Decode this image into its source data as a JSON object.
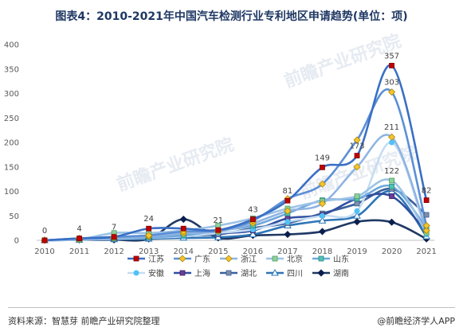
{
  "chart_data": {
    "type": "line",
    "title": "图表4：2010-2021年中国汽车检测行业专利地区申请趋势(单位：项)",
    "categories": [
      "2010",
      "2011",
      "2012",
      "2013",
      "2014",
      "2015",
      "2016",
      "2017",
      "2018",
      "2019",
      "2020",
      "2021"
    ],
    "ylim": [
      0,
      400
    ],
    "yticks": [
      0,
      50,
      100,
      150,
      200,
      250,
      300,
      350,
      400
    ],
    "grid": false,
    "legend_position": "bottom",
    "series": [
      {
        "name": "江苏",
        "color": "#3a6fc4",
        "marker": "square-red",
        "values": [
          0,
          4,
          7,
          24,
          24,
          21,
          43,
          81,
          149,
          173,
          357,
          82
        ]
      },
      {
        "name": "广东",
        "color": "#5b8fd6",
        "marker": "diamond-yellow",
        "values": [
          0,
          4,
          7,
          10,
          18,
          20,
          40,
          85,
          115,
          205,
          303,
          30
        ]
      },
      {
        "name": "浙江",
        "color": "#8fb4e3",
        "marker": "diamond-yellow",
        "values": [
          0,
          3,
          5,
          8,
          14,
          18,
          35,
          60,
          75,
          150,
          211,
          20
        ]
      },
      {
        "name": "北京",
        "color": "#9cc3e6",
        "marker": "square-green",
        "values": [
          0,
          2,
          15,
          15,
          20,
          30,
          45,
          65,
          80,
          90,
          122,
          15
        ]
      },
      {
        "name": "山东",
        "color": "#6fa8dc",
        "marker": "square-teal",
        "values": [
          0,
          2,
          4,
          6,
          10,
          20,
          30,
          55,
          82,
          85,
          110,
          25
        ]
      },
      {
        "name": "安徽",
        "color": "#c5dcf2",
        "marker": "circle-cyan",
        "values": [
          0,
          1,
          3,
          5,
          8,
          15,
          22,
          38,
          50,
          60,
          200,
          12
        ]
      },
      {
        "name": "上海",
        "color": "#2f4fa0",
        "marker": "square-purple",
        "values": [
          0,
          2,
          5,
          10,
          15,
          15,
          20,
          45,
          52,
          85,
          90,
          18
        ]
      },
      {
        "name": "湖北",
        "color": "#3a5f9c",
        "marker": "square-gray",
        "values": [
          0,
          1,
          3,
          5,
          10,
          12,
          25,
          35,
          55,
          75,
          105,
          52
        ]
      },
      {
        "name": "四川",
        "color": "#2e75b6",
        "marker": "triangle",
        "values": [
          0,
          1,
          2,
          3,
          5,
          6,
          12,
          30,
          40,
          50,
          100,
          8
        ]
      },
      {
        "name": "湖南",
        "color": "#1f3864",
        "marker": "diamond-navy",
        "values": [
          0,
          1,
          1,
          3,
          43,
          5,
          10,
          12,
          18,
          38,
          37,
          3
        ]
      }
    ],
    "data_labels": [
      {
        "series": 0,
        "index": 0,
        "text": "0"
      },
      {
        "series": 0,
        "index": 1,
        "text": "4"
      },
      {
        "series": 0,
        "index": 2,
        "text": "7"
      },
      {
        "series": 0,
        "index": 3,
        "text": "24"
      },
      {
        "series": 0,
        "index": 5,
        "text": "21"
      },
      {
        "series": 0,
        "index": 6,
        "text": "43"
      },
      {
        "series": 0,
        "index": 7,
        "text": "81"
      },
      {
        "series": 0,
        "index": 8,
        "text": "149"
      },
      {
        "series": 0,
        "index": 9,
        "text": "173"
      },
      {
        "series": 0,
        "index": 10,
        "text": "357"
      },
      {
        "series": 1,
        "index": 10,
        "text": "303"
      },
      {
        "series": 2,
        "index": 10,
        "text": "211"
      },
      {
        "series": 3,
        "index": 10,
        "text": "122"
      },
      {
        "series": 0,
        "index": 11,
        "text": "82"
      }
    ]
  },
  "footer": {
    "source": "资料来源：智慧芽 前瞻产业研究院整理",
    "brand": "@前瞻经济学人APP"
  },
  "watermark": "前瞻产业研究院"
}
